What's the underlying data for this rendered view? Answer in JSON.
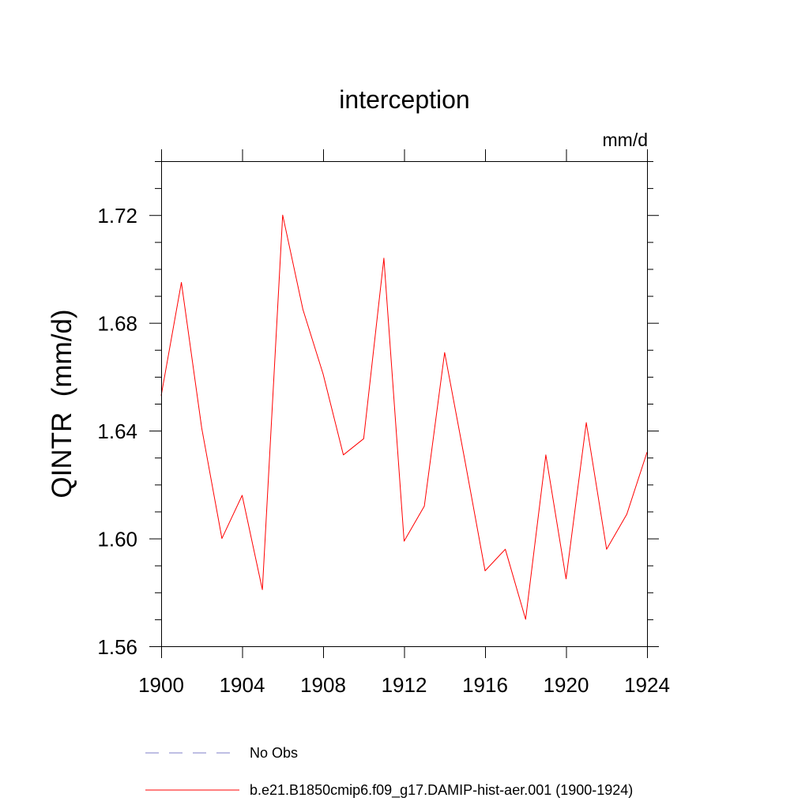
{
  "chart_data": {
    "type": "line",
    "title": "interception",
    "units": "mm/d",
    "ylabel": "QINTR  (mm/d)",
    "xlabel": "",
    "xlim": [
      1900,
      1924
    ],
    "ylim": [
      1.56,
      1.74
    ],
    "x_ticks": [
      1900,
      1904,
      1908,
      1912,
      1916,
      1920,
      1924
    ],
    "x_tick_labels": [
      "1900",
      "1904",
      "1908",
      "1912",
      "1916",
      "1920",
      "1924"
    ],
    "y_ticks": [
      1.56,
      1.6,
      1.64,
      1.68,
      1.72
    ],
    "y_tick_labels": [
      "1.56",
      "1.60",
      "1.64",
      "1.68",
      "1.72"
    ],
    "grid": false,
    "legend_placement": "bottom",
    "series": [
      {
        "name": "b.e21.B1850cmip6.f09_g17.DAMIP-hist-aer.001 (1900-1924)",
        "color": "#ff0000",
        "style": "solid",
        "x": [
          1900,
          1901,
          1902,
          1903,
          1904,
          1905,
          1906,
          1907,
          1908,
          1909,
          1910,
          1911,
          1912,
          1913,
          1914,
          1915,
          1916,
          1917,
          1918,
          1919,
          1920,
          1921,
          1922,
          1923,
          1924
        ],
        "y": [
          1.653,
          1.695,
          1.641,
          1.6,
          1.616,
          1.581,
          1.72,
          1.685,
          1.661,
          1.631,
          1.637,
          1.704,
          1.599,
          1.612,
          1.669,
          1.629,
          1.588,
          1.596,
          1.57,
          1.631,
          1.585,
          1.643,
          1.596,
          1.609,
          1.632
        ]
      }
    ],
    "legend": [
      {
        "label": "No Obs",
        "color": "#7f7fc8",
        "style": "dashed"
      },
      {
        "label": "b.e21.B1850cmip6.f09_g17.DAMIP-hist-aer.001 (1900-1924)",
        "color": "#ff0000",
        "style": "solid"
      }
    ]
  }
}
